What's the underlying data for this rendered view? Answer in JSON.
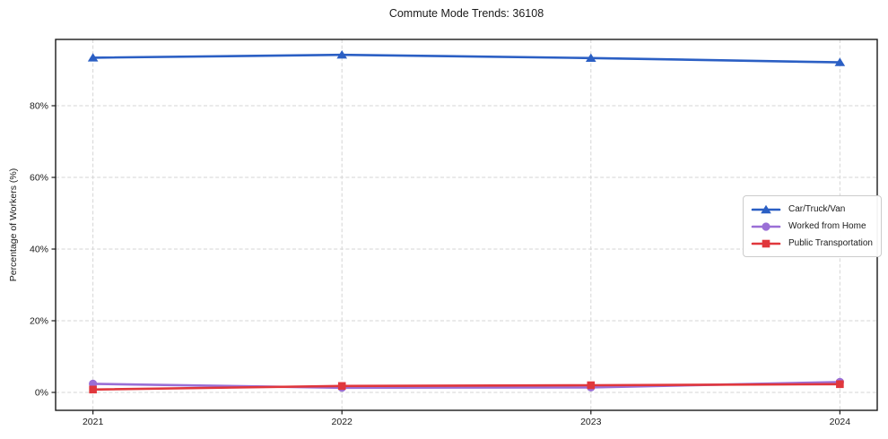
{
  "chart_data": {
    "type": "line",
    "title": "Commute Mode Trends: 36108",
    "xlabel": "",
    "ylabel": "Percentage of Workers (%)",
    "categories": [
      "2021",
      "2022",
      "2023",
      "2024"
    ],
    "series": [
      {
        "name": "Car/Truck/Van",
        "color": "#2b5fc4",
        "marker": "triangle",
        "values": [
          93.4,
          94.2,
          93.3,
          92.1
        ]
      },
      {
        "name": "Worked from Home",
        "color": "#9a6fd6",
        "marker": "circle",
        "values": [
          2.4,
          1.3,
          1.4,
          2.9
        ]
      },
      {
        "name": "Public Transportation",
        "color": "#e0373c",
        "marker": "square",
        "values": [
          0.8,
          1.8,
          2.0,
          2.3
        ]
      }
    ],
    "yticks": {
      "values": [
        0,
        20,
        40,
        60,
        80
      ],
      "labels": [
        "0%",
        "20%",
        "40%",
        "60%",
        "80%"
      ]
    },
    "ylim": [
      -5,
      98.5
    ],
    "xlim": [
      -0.15,
      3.15
    ],
    "grid": true,
    "grid_style": "dashed",
    "legend_position": "center right"
  }
}
